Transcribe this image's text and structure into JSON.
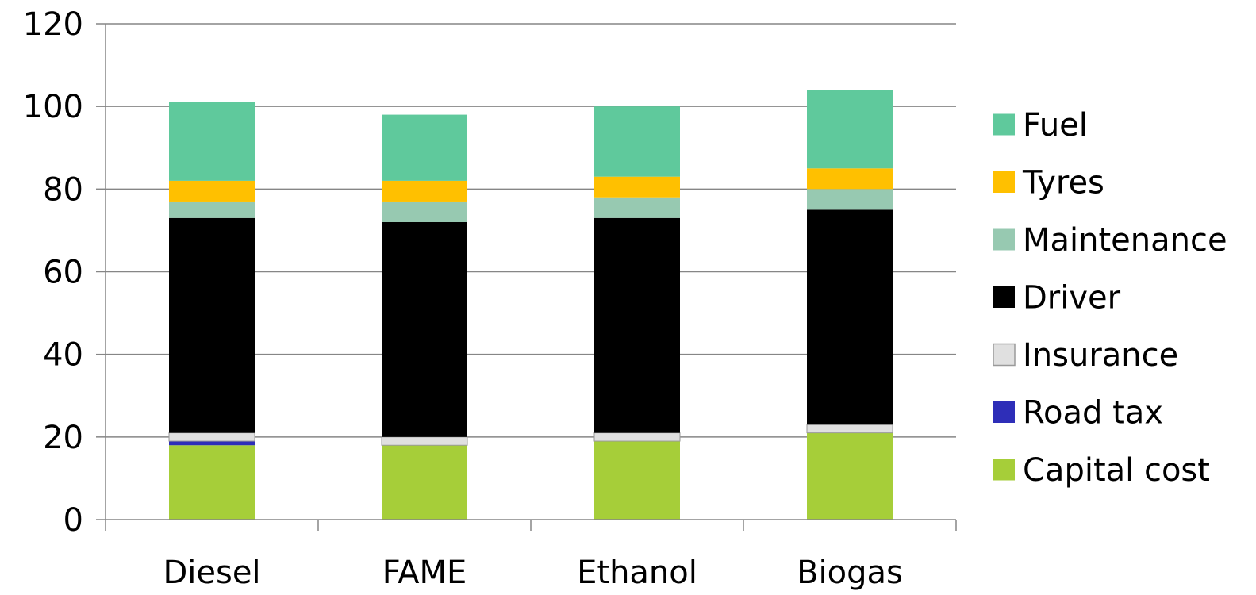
{
  "chart_data": {
    "type": "bar",
    "stacked": true,
    "categories": [
      "Diesel",
      "FAME",
      "Ethanol",
      "Biogas"
    ],
    "ylim": [
      0,
      120
    ],
    "yticks": [
      "0",
      "20",
      "40",
      "60",
      "80",
      "100",
      "120"
    ],
    "grid": "horizontal",
    "legend_position": "right",
    "legend_order": [
      "Fuel",
      "Tyres",
      "Maintenance",
      "Driver",
      "Insurance",
      "Road tax",
      "Capital cost"
    ],
    "series": [
      {
        "name": "Capital cost",
        "color": "#a6ce39",
        "values": [
          18,
          18,
          19,
          21
        ]
      },
      {
        "name": "Road tax",
        "color": "#2e2eb8",
        "values": [
          1,
          0,
          0,
          0
        ]
      },
      {
        "name": "Insurance",
        "color": "#e0e0e0",
        "values": [
          2,
          2,
          2,
          2
        ]
      },
      {
        "name": "Driver",
        "color": "#000000",
        "values": [
          52,
          52,
          52,
          52
        ]
      },
      {
        "name": "Maintenance",
        "color": "#97c9b1",
        "values": [
          4,
          5,
          5,
          5
        ]
      },
      {
        "name": "Tyres",
        "color": "#ffc000",
        "values": [
          5,
          5,
          5,
          5
        ]
      },
      {
        "name": "Fuel",
        "color": "#5fc99c",
        "values": [
          19,
          16,
          17,
          19
        ]
      }
    ]
  }
}
